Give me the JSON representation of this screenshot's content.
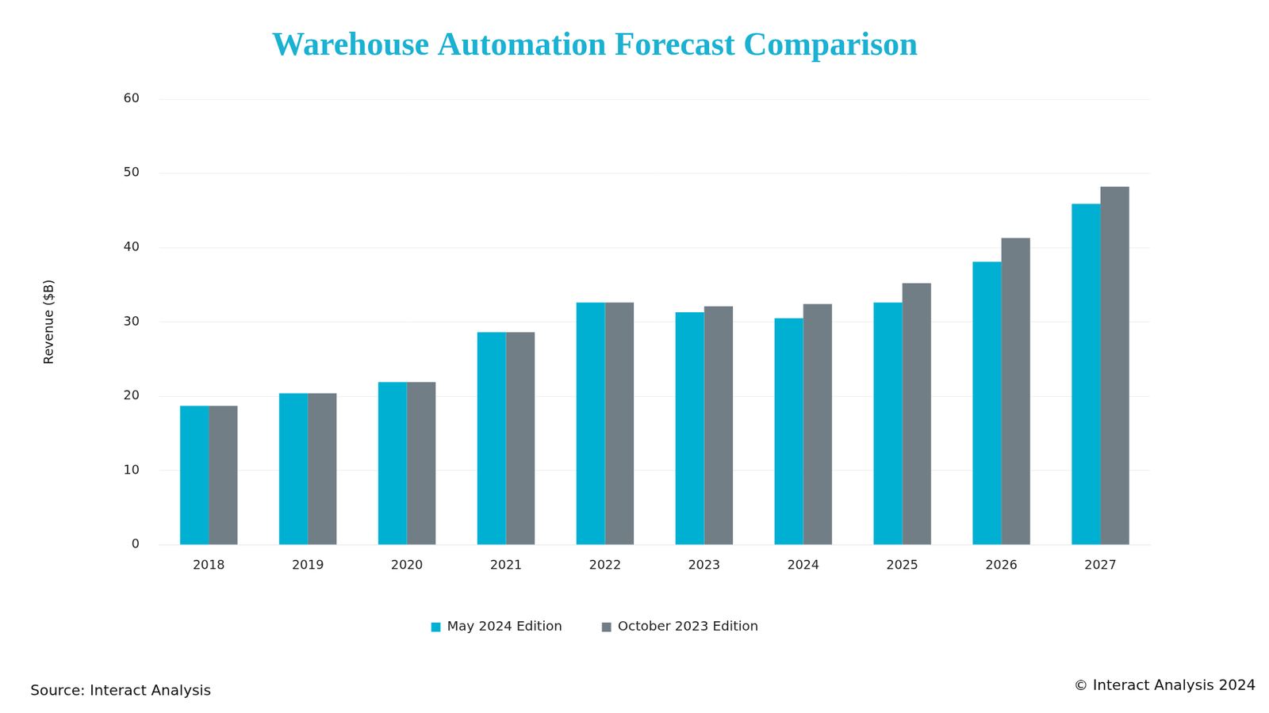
{
  "chart_data": {
    "type": "bar",
    "title": "Warehouse Automation Forecast Comparison",
    "y_label": "Revenue ($B)",
    "categories": [
      "2018",
      "2019",
      "2020",
      "2021",
      "2022",
      "2023",
      "2024",
      "2025",
      "2026",
      "2027"
    ],
    "series": [
      {
        "name": "May 2024 Edition",
        "color": "#00b0d2",
        "values": [
          18.7,
          20.4,
          21.9,
          28.6,
          32.6,
          31.3,
          30.5,
          32.6,
          38.1,
          45.9
        ]
      },
      {
        "name": "October 2023 Edition",
        "color": "#717e86",
        "values": [
          18.7,
          20.4,
          21.9,
          28.6,
          32.6,
          32.1,
          32.4,
          35.2,
          41.3,
          48.2
        ]
      }
    ],
    "ylim": [
      0,
      60
    ],
    "yticks": [
      0,
      10,
      20,
      30,
      40,
      50,
      60
    ],
    "grid": true,
    "legend": "bottom",
    "annotations": [
      "Source: Interact Analysis",
      "© Interact Analysis 2024"
    ]
  }
}
